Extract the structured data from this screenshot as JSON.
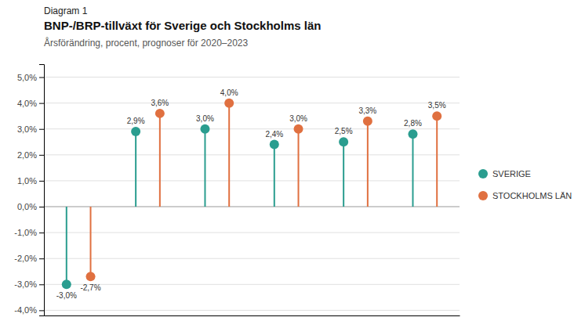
{
  "chart_data": {
    "type": "lollipop",
    "annotations": [
      "Diagram 1"
    ],
    "title": "BNP-/BRP-tillväxt för Sverige och Stockholms län",
    "subtitle": "Årsförändring, procent, prognoser för 2020–2023",
    "categories": [
      null,
      null,
      null,
      null,
      null,
      null
    ],
    "series": [
      {
        "name": "SVERIGE",
        "color": "#2a9d8f",
        "values": [
          -3.0,
          2.9,
          3.0,
          2.4,
          2.5,
          2.8
        ],
        "value_labels": [
          "-3,0%",
          "2,9%",
          "3,0%",
          "2,4%",
          "2,5%",
          "2,8%"
        ]
      },
      {
        "name": "STOCKHOLMS LÄN",
        "color": "#e07040",
        "values": [
          -2.7,
          3.6,
          4.0,
          3.0,
          3.3,
          3.5
        ],
        "value_labels": [
          "-2,7%",
          "3,6%",
          "4,0%",
          "3,0%",
          "3,3%",
          "3,5%"
        ]
      }
    ],
    "ylim": [
      -4.2,
      5.5
    ],
    "yticks": [
      {
        "value": -4.0,
        "label": "-4,0%"
      },
      {
        "value": -3.0,
        "label": "-3,0%"
      },
      {
        "value": -2.0,
        "label": "-2,0%"
      },
      {
        "value": -1.0,
        "label": "-1,0%"
      },
      {
        "value": 0.0,
        "label": "0,0%"
      },
      {
        "value": 1.0,
        "label": "1,0%"
      },
      {
        "value": 2.0,
        "label": "2,0%"
      },
      {
        "value": 3.0,
        "label": "3,0%"
      },
      {
        "value": 4.0,
        "label": "4,0%"
      },
      {
        "value": 5.0,
        "label": "5,0%"
      }
    ],
    "grid": true,
    "legend": "right",
    "data_labels": true
  }
}
